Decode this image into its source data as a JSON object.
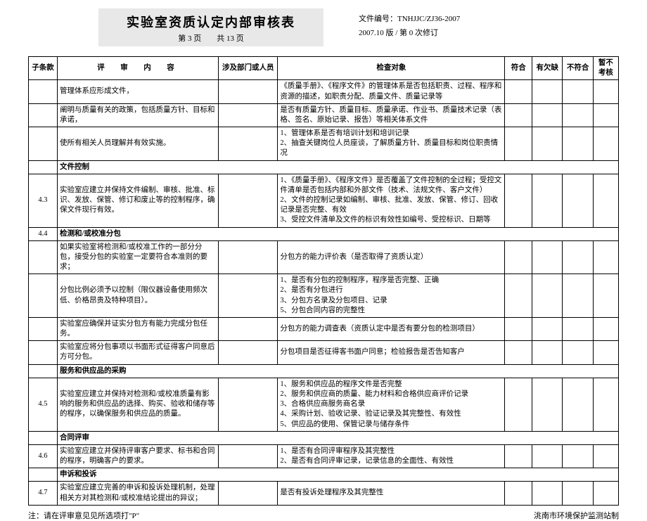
{
  "header": {
    "title": "实验室资质认定内部审核表",
    "page_info": "第 3 页　　共 13 页",
    "doc_no_label": "文件编号：",
    "doc_no": "TNHJJC/ZJ36-2007",
    "version": "2007.10 版 / 第 0 次修订"
  },
  "columns": {
    "clause": "子条款",
    "content": "评　审　内　容",
    "dept": "涉及部门或人员",
    "check": "检查对象",
    "c1": "符合",
    "c2": "有欠缺",
    "c3": "不符合",
    "c4": "暂不考核"
  },
  "rows": [
    {
      "clause": "",
      "content": "管理体系应形成文件，",
      "check": "《质量手册》、《程序文件》的管理体系是否包括职责、过程、程序和资源的描述，如职责分配、质量文件、质量记录等"
    },
    {
      "clause": "",
      "content": "阐明与质量有关的政策，包括质量方针、目标和承诺，",
      "check": "是否有质量方针、质量目标、质量承诺、作业书、质量技术记录（表格、签名、原始记录、报告）等相关体系文件"
    },
    {
      "clause": "",
      "content": "使所有相关人员理解并有效实施。",
      "check": "1、管理体系是否有培训计划和培训记录\n2、抽查关键岗位人员座谈，了解质量方针、质量目标和岗位职责情况"
    },
    {
      "clause": "",
      "bold": true,
      "content": "文件控制"
    },
    {
      "clause": "4.3",
      "content": "实验室应建立并保持文件编制、审核、批准、标识、发放、保管、修订和废止等的控制程序，确保文件现行有效。",
      "check": "1、《质量手册》、《程序文件》是否覆盖了文件控制的全过程；受控文件清单是否包括内部和外部文件（技术、法规文件、客户文件）\n2、文件的控制记录如编制、审核、批准、发放、保管、修订、回收记录是否完整、有效\n3、受控文件清单及文件的标识有效性如编号、受控标识、日期等"
    },
    {
      "clause": "4.4",
      "bold": true,
      "content": "检测和/或校准分包"
    },
    {
      "clause": "",
      "content": "如果实验室将检测和/或校准工作的一部分分包，接受分包的实验室一定要符合本准则的要求；",
      "check": "分包方的能力评价表（是否取得了资质认定）"
    },
    {
      "clause": "",
      "content": "分包比例必须予以控制（限仪器设备使用频次低、价格昂贵及特种项目）。",
      "check": "1、是否有分包的控制程序，程序是否完整、正确\n2、是否有分包进行\n3、分包方名录及分包项目、记录\n5、分包合同内容的完整性"
    },
    {
      "clause": "",
      "content": "实验室应确保并证实分包方有能力完成分包任务。",
      "check": "分包方的能力调查表（资质认定中是否有要分包的检测项目）"
    },
    {
      "clause": "",
      "content": "实验室应将分包事项以书面形式征得客户同意后方可分包。",
      "check": "分包项目是否征得客书面户同意；检验报告是否告知客户"
    },
    {
      "clause": "",
      "bold": true,
      "content": "服务和供应品的采购"
    },
    {
      "clause": "4.5",
      "content": "实验室应建立并保持对检测和/或校准质量有影响的服务和供应品的选择、购买、验收和储存等的程序，以确保服务和供应品的质量。",
      "check": "1、服务和供应品的程序文件是否完整\n2、服务和供应商的质量、能力材料和合格供应商评价记录\n3、合格供应商服务商名录\n4、采购计划、验收记录、验证记录及其完整性、有效性\n5、供应品的使用、保管记录与储存条件"
    },
    {
      "clause": "",
      "bold": true,
      "content": "合同评审"
    },
    {
      "clause": "4.6",
      "content": "实验室应建立并保持评审客户要求、标书和合同的程序，明确客户的要求。",
      "check": "1、是否有合同评审程序及其完整性\n2、是否有合同评审记录，记录信息的全面性、有效性"
    },
    {
      "clause": "",
      "bold": true,
      "content": "申诉和投诉"
    },
    {
      "clause": "4.7",
      "content": "实验室应建立完善的申诉和投诉处理机制，处理相关方对其检测和/或校准结论提出的异议；",
      "check": "是否有投诉处理程序及其完整性"
    }
  ],
  "footer": {
    "note": "注：请在评审意见见所选项打\"P\"",
    "org": "洮南市环境保护监测站制"
  }
}
